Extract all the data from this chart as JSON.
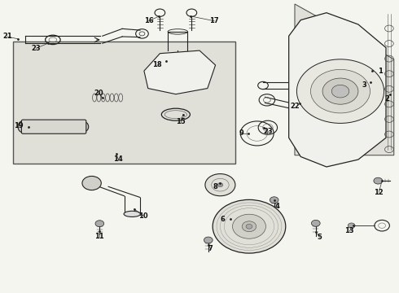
{
  "title": "",
  "background_color": "#f5f5f0",
  "box_color": "#e0e0d8",
  "line_color": "#222222",
  "figsize": [
    4.9,
    3.6
  ],
  "dpi": 100
}
